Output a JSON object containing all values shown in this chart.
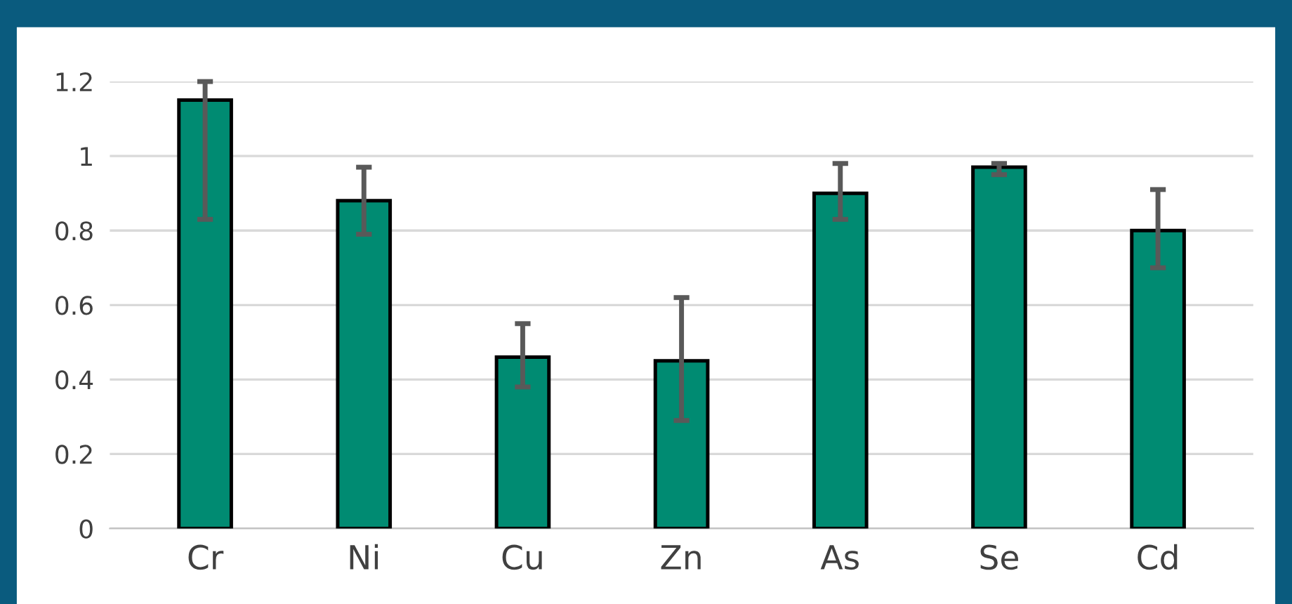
{
  "chart_data": {
    "type": "bar",
    "categories": [
      "Cr",
      "Ni",
      "Cu",
      "Zn",
      "As",
      "Se",
      "Cd"
    ],
    "values": [
      1.15,
      0.88,
      0.46,
      0.45,
      0.9,
      0.97,
      0.8
    ],
    "errors": [
      [
        0.83,
        1.2
      ],
      [
        0.79,
        0.97
      ],
      [
        0.38,
        0.55
      ],
      [
        0.29,
        0.62
      ],
      [
        0.83,
        0.98
      ],
      [
        0.95,
        0.98
      ],
      [
        0.7,
        0.91
      ]
    ],
    "color": "#008b72",
    "ylim": [
      0,
      1.2
    ],
    "yticks": [
      0,
      0.2,
      0.4,
      0.6,
      0.8,
      1,
      1.2
    ],
    "grid": "y"
  }
}
